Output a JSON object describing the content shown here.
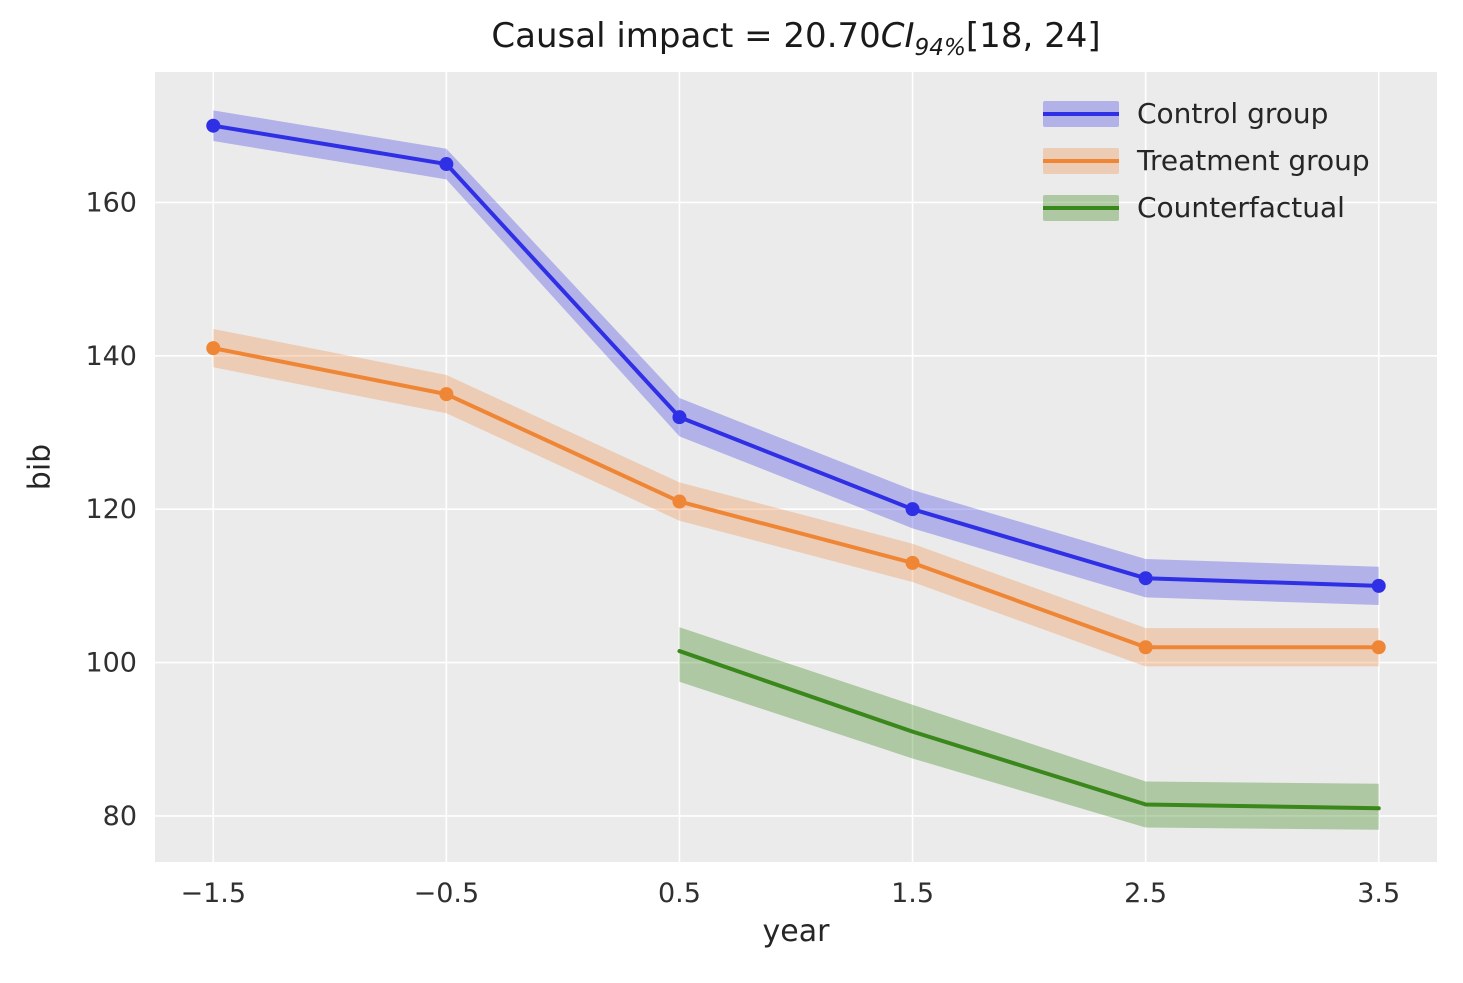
{
  "chart_data": {
    "type": "line",
    "title": "Causal impact = 20.70CI94%[18, 24]",
    "title_parts": {
      "prefix": "Causal impact = 20.70",
      "ci": "CI",
      "sub": "94%",
      "suffix": "[18, 24]"
    },
    "xlabel": "year",
    "ylabel": "bib",
    "xlim": [
      -1.75,
      3.75
    ],
    "ylim": [
      74,
      177
    ],
    "grid": true,
    "background": "#ebebeb",
    "grid_color": "#ffffff",
    "tick_color": "#303030",
    "xticks": [
      -1.5,
      -0.5,
      0.5,
      1.5,
      2.5,
      3.5
    ],
    "xtick_labels": [
      "−1.5",
      "−0.5",
      "0.5",
      "1.5",
      "2.5",
      "3.5"
    ],
    "yticks": [
      80,
      100,
      120,
      140,
      160
    ],
    "ytick_labels": [
      "80",
      "100",
      "120",
      "140",
      "160"
    ],
    "legend_position": "upper right",
    "series": [
      {
        "name": "Control group",
        "color": "#2f2fe6",
        "band_opacity": 0.3,
        "markers": true,
        "x": [
          -1.5,
          -0.5,
          0.5,
          1.5,
          2.5,
          3.5
        ],
        "y": [
          170,
          165,
          132,
          120,
          111,
          110
        ],
        "lower": [
          168,
          163,
          129.5,
          117.5,
          108.5,
          107.5
        ],
        "upper": [
          172,
          167,
          134.5,
          122.5,
          113.5,
          112.5
        ]
      },
      {
        "name": "Treatment group",
        "color": "#ef8636",
        "band_opacity": 0.3,
        "markers": true,
        "x": [
          -1.5,
          -0.5,
          0.5,
          1.5,
          2.5,
          3.5
        ],
        "y": [
          141,
          135,
          121,
          113,
          102,
          102
        ],
        "lower": [
          138.5,
          132.5,
          118.5,
          110.5,
          99.5,
          99.5
        ],
        "upper": [
          143.5,
          137.5,
          123.5,
          115.5,
          104.5,
          104.5
        ]
      },
      {
        "name": "Counterfactual",
        "color": "#3a871b",
        "band_opacity": 0.35,
        "markers": false,
        "x": [
          0.5,
          1.5,
          2.5,
          3.5
        ],
        "y": [
          101.5,
          91,
          81.5,
          81
        ],
        "lower": [
          97.5,
          87.5,
          78.5,
          78.2
        ],
        "upper": [
          104.6,
          94.5,
          84.5,
          84.2
        ]
      }
    ]
  }
}
